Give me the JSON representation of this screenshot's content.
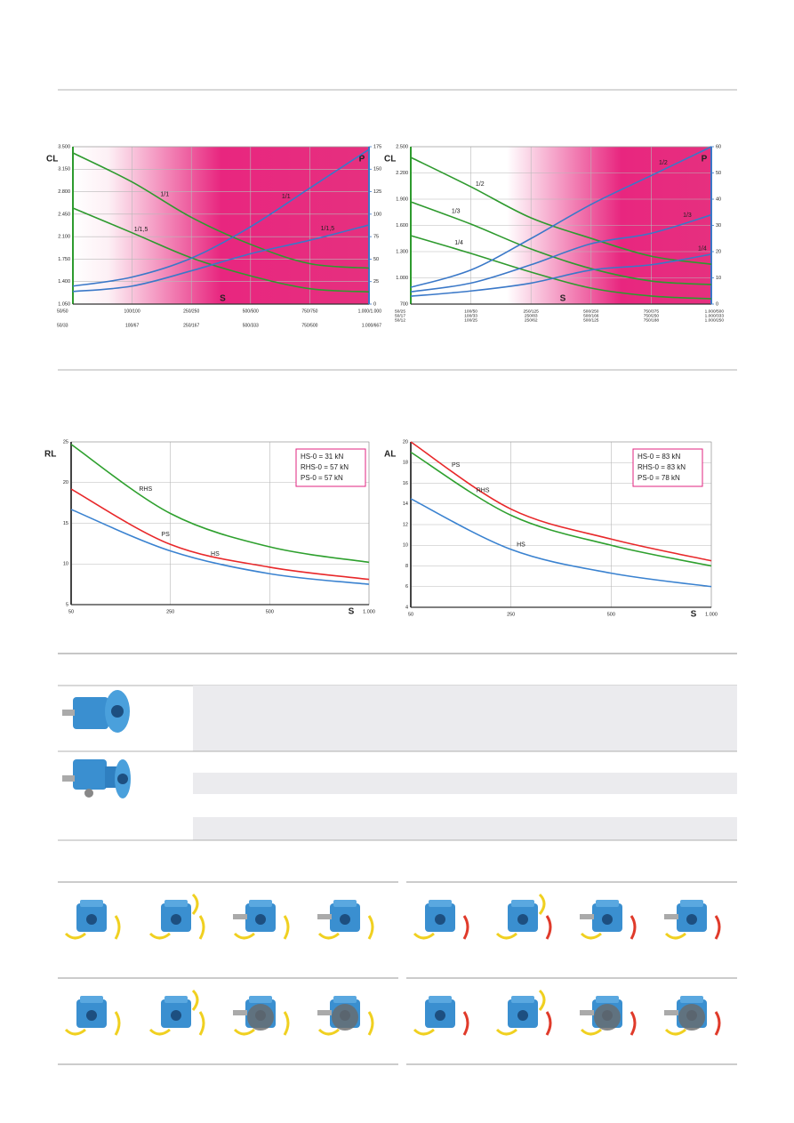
{
  "chart_data": [
    {
      "type": "line",
      "y_label": "CL",
      "y2_label": "P",
      "x_label": "S",
      "categories": [
        [
          "50/50",
          "50/33"
        ],
        [
          "100/100",
          "100/67"
        ],
        [
          "250/250",
          "250/167"
        ],
        [
          "500/500",
          "500/333"
        ],
        [
          "750/750",
          "750/500"
        ],
        [
          "1.000/1.000",
          "1.000/667"
        ]
      ],
      "ylim": [
        1050,
        3500
      ],
      "yticks": [
        {
          "value": 1050,
          "label": "1.050"
        },
        {
          "value": 1400,
          "label": "1.400"
        },
        {
          "value": 1750,
          "label": "1.750"
        },
        {
          "value": 2100,
          "label": "2.100"
        },
        {
          "value": 2450,
          "label": "2.450"
        },
        {
          "value": 2800,
          "label": "2.800"
        },
        {
          "value": 3150,
          "label": "3.150"
        },
        {
          "value": 3500,
          "label": "3.500"
        }
      ],
      "y2lim": [
        0,
        175
      ],
      "y2ticks": [
        0,
        25,
        50,
        75,
        100,
        125,
        150,
        175
      ],
      "grid": true,
      "series": [
        {
          "name": "1/1",
          "color": "#2e9a2e",
          "values": [
            3403,
            2950,
            2400,
            1980,
            1680,
            1610
          ]
        },
        {
          "name": "1/1,5",
          "color": "#2e9a2e",
          "values": [
            2545,
            2160,
            1770,
            1490,
            1290,
            1240
          ]
        },
        {
          "name": "1/1",
          "color": "#3a78c8",
          "axis": "y2",
          "values": [
            20,
            30,
            51,
            86,
            129,
            172
          ]
        },
        {
          "name": "1/1,5",
          "color": "#3a78c8",
          "axis": "y2",
          "values": [
            14,
            20,
            37,
            56,
            71,
            88
          ]
        }
      ]
    },
    {
      "type": "line",
      "y_label": "CL",
      "y2_label": "P",
      "x_label": "S",
      "categories": [
        [
          "50/25",
          "50/17",
          "50/12"
        ],
        [
          "100/50",
          "100/33",
          "100/25"
        ],
        [
          "250/125",
          "250/83",
          "250/62"
        ],
        [
          "500/250",
          "500/166",
          "500/125"
        ],
        [
          "750/375",
          "750/250",
          "750/188"
        ],
        [
          "1.000/500",
          "1.000/333",
          "1.000/250"
        ]
      ],
      "ylim": [
        700,
        2500
      ],
      "yticks": [
        700,
        {
          "value": 1000,
          "label": "1.000"
        },
        {
          "value": 1300,
          "label": "1.300"
        },
        {
          "value": 1600,
          "label": "1.600"
        },
        {
          "value": 1900,
          "label": "1.900"
        },
        {
          "value": 2200,
          "label": "2.200"
        },
        {
          "value": 2500,
          "label": "2.500"
        }
      ],
      "y2lim": [
        0,
        60
      ],
      "y2ticks": [
        0,
        10,
        20,
        30,
        40,
        50,
        60
      ],
      "grid": true,
      "series": [
        {
          "name": "1/2",
          "color": "#2e9a2e",
          "values": [
            2378,
            2042,
            1686,
            1452,
            1248,
            1156
          ]
        },
        {
          "name": "1/3",
          "color": "#2e9a2e",
          "values": [
            1870,
            1615,
            1330,
            1106,
            964,
            923
          ]
        },
        {
          "name": "1/4",
          "color": "#2e9a2e",
          "values": [
            1483,
            1280,
            1066,
            883,
            792,
            761
          ]
        },
        {
          "name": "1/2",
          "color": "#3a78c8",
          "axis": "y2",
          "values": [
            6.4,
            13,
            25,
            38,
            49,
            60
          ]
        },
        {
          "name": "1/3",
          "color": "#3a78c8",
          "axis": "y2",
          "values": [
            4.7,
            8,
            15,
            23,
            27,
            34
          ]
        },
        {
          "name": "1/4",
          "color": "#3a78c8",
          "axis": "y2",
          "values": [
            3,
            5,
            8,
            13,
            15,
            19
          ]
        }
      ]
    },
    {
      "type": "line",
      "y_label": "RL",
      "x_label": "S",
      "categories": [
        "50",
        "250",
        "500",
        "1.000"
      ],
      "ylim": [
        5,
        25
      ],
      "yticks": [
        5,
        10,
        15,
        20,
        25
      ],
      "grid": true,
      "annotations": [
        "HS-0 = 31 kN",
        "RHS-0 = 57 kN",
        "PS-0 = 57 kN"
      ],
      "series": [
        {
          "name": "RHS",
          "color": "#2ea02e",
          "values": [
            24.7,
            16.2,
            12.1,
            10.2
          ]
        },
        {
          "name": "PS",
          "color": "#e8282a",
          "values": [
            19.2,
            12.4,
            9.6,
            8.1
          ]
        },
        {
          "name": "HS",
          "color": "#3a82d0",
          "values": [
            16.7,
            11.6,
            8.8,
            7.5
          ]
        }
      ]
    },
    {
      "type": "line",
      "y_label": "AL",
      "x_label": "S",
      "categories": [
        "50",
        "250",
        "500",
        "1.000"
      ],
      "ylim": [
        4,
        20
      ],
      "yticks": [
        4,
        6,
        8,
        10,
        12,
        14,
        16,
        18,
        20
      ],
      "grid": true,
      "annotations": [
        "HS-0 = 83 kN",
        "RHS-0 = 83 kN",
        "PS-0 = 78 kN"
      ],
      "series": [
        {
          "name": "PS",
          "color": "#e8282a",
          "values": [
            20,
            13.5,
            10.6,
            8.5
          ]
        },
        {
          "name": "RHS",
          "color": "#2ea02e",
          "values": [
            19,
            12.9,
            10.0,
            8.0
          ]
        },
        {
          "name": "HS",
          "color": "#3a82d0",
          "values": [
            14.5,
            9.6,
            7.3,
            6.0
          ]
        }
      ]
    }
  ]
}
